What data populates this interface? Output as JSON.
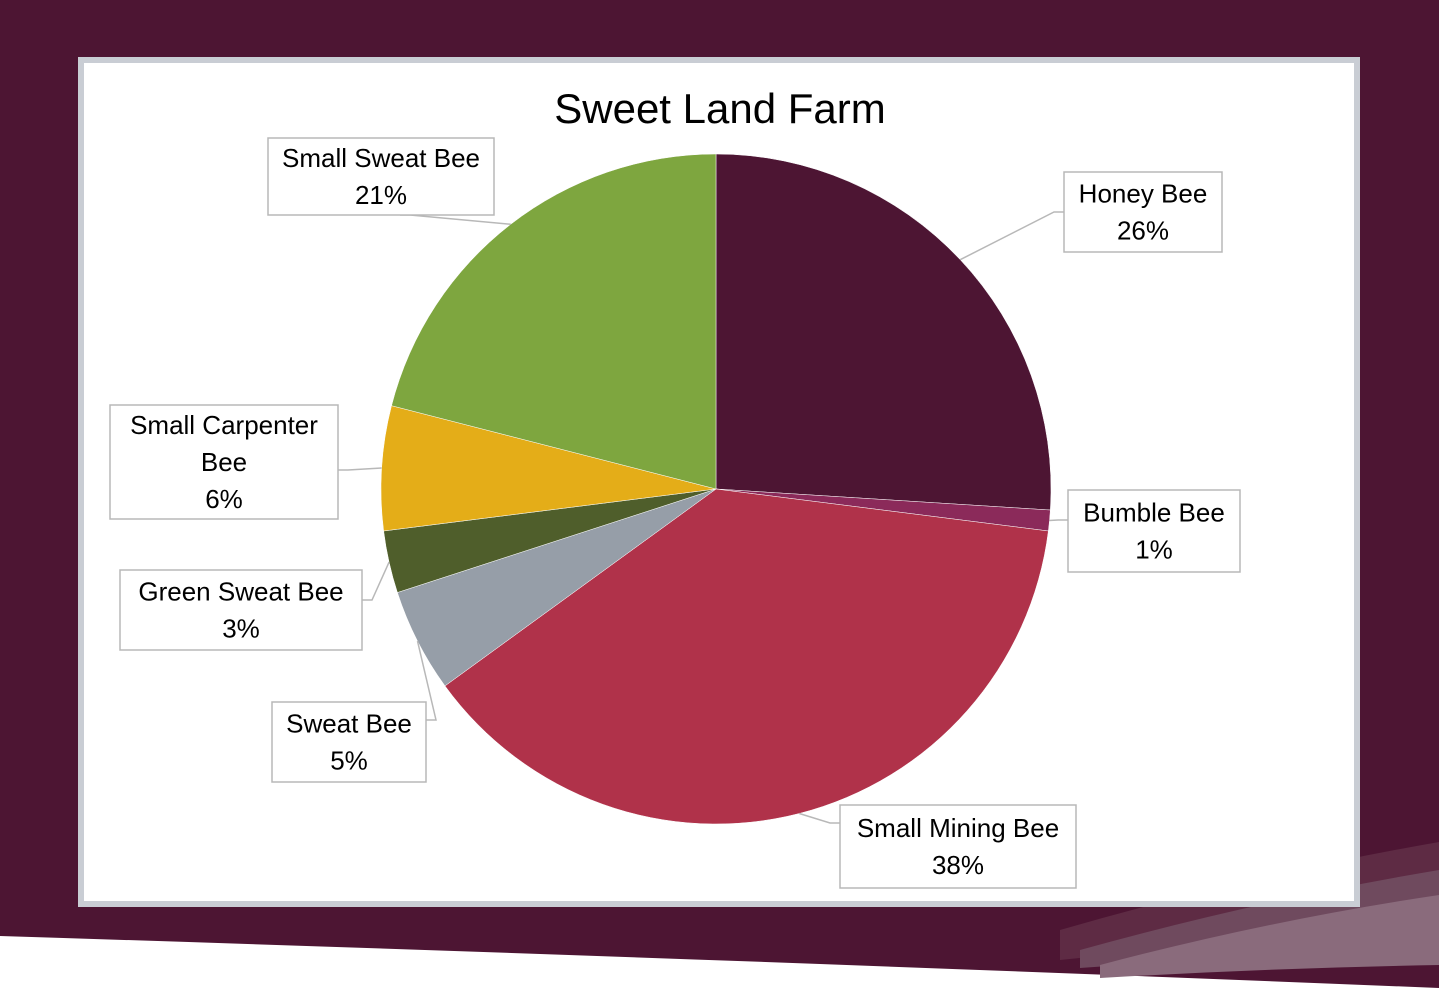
{
  "theme": {
    "background_color": "#4d1533",
    "panel_border_color": "#c9cdd4",
    "swoosh_colors": [
      "#5e2b44",
      "#6f4a5e",
      "#8a6b7c"
    ]
  },
  "chart_data": {
    "type": "pie",
    "title": "Sweet Land Farm",
    "slices": [
      {
        "name": "Honey Bee",
        "value": 26,
        "label": "26%",
        "color": "#4d1533"
      },
      {
        "name": "Bumble Bee",
        "value": 1,
        "label": "1%",
        "color": "#8b2a5a"
      },
      {
        "name": "Small Mining Bee",
        "value": 38,
        "label": "38%",
        "color": "#b0324a"
      },
      {
        "name": "Sweat Bee",
        "value": 5,
        "label": "5%",
        "color": "#969ea8"
      },
      {
        "name": "Green Sweat Bee",
        "value": 3,
        "label": "3%",
        "color": "#4f5e2b"
      },
      {
        "name": "Small Carpenter Bee",
        "value": 6,
        "label": "6%",
        "color": "#e4ad18"
      },
      {
        "name": "Small Sweat Bee",
        "value": 21,
        "label": "21%",
        "color": "#7ea63f"
      }
    ],
    "start_angle": "12 o'clock",
    "direction": "clockwise",
    "legend": "none",
    "data_labels": "category name and percentage in callout boxes"
  }
}
